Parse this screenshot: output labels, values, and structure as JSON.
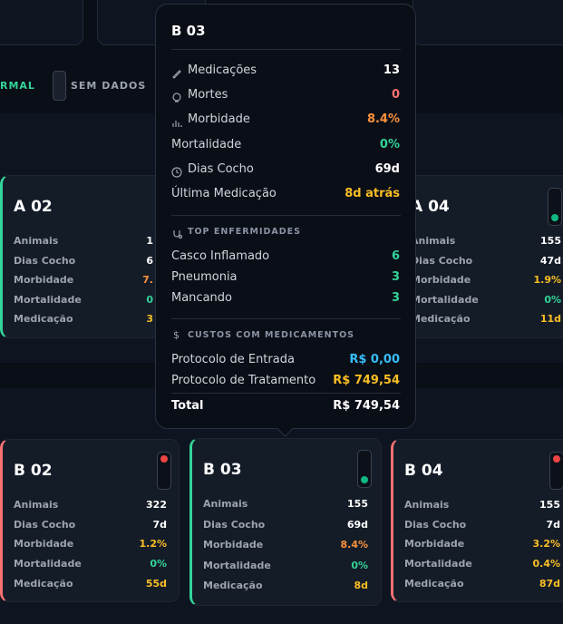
{
  "legend": [
    "RMAL",
    "SEM DADOS"
  ],
  "cards": [
    {
      "title": "A 02",
      "rows": [
        [
          "Animais",
          "1"
        ],
        [
          "Dias Cocho",
          "6"
        ],
        [
          "Morbidade",
          "7."
        ],
        [
          "Mortalidade",
          "0"
        ],
        [
          "Medicação",
          "3"
        ]
      ]
    },
    {
      "title": "A 04",
      "rows": [
        [
          "Animais",
          "155"
        ],
        [
          "Dias Cocho",
          "47d"
        ],
        [
          "Morbidade",
          "1.9%"
        ],
        [
          "Mortalidade",
          "0%"
        ],
        [
          "Medicação",
          "11d"
        ]
      ]
    },
    {
      "title": "B 02",
      "rows": [
        [
          "Animais",
          "322"
        ],
        [
          "Dias Cocho",
          "7d"
        ],
        [
          "Morbidade",
          "1.2%"
        ],
        [
          "Mortalidade",
          "0%"
        ],
        [
          "Medicação",
          "55d"
        ]
      ]
    },
    {
      "title": "B 03",
      "rows": [
        [
          "Animais",
          "155"
        ],
        [
          "Dias Cocho",
          "69d"
        ],
        [
          "Morbidade",
          "8.4%"
        ],
        [
          "Mortalidade",
          "0%"
        ],
        [
          "Medicação",
          "8d"
        ]
      ]
    },
    {
      "title": "B 04",
      "rows": [
        [
          "Animais",
          "155"
        ],
        [
          "Dias Cocho",
          "7d"
        ],
        [
          "Morbidade",
          "3.2%"
        ],
        [
          "Mortalidade",
          "0.4%"
        ],
        [
          "Medicação",
          "87d"
        ]
      ]
    }
  ],
  "tooltip": {
    "title": "B 03",
    "stats": [
      [
        "Medicações",
        "13"
      ],
      [
        "Mortes",
        "0"
      ],
      [
        "Morbidade",
        "8.4%"
      ],
      [
        "Mortalidade",
        "0%"
      ],
      [
        "Dias Cocho",
        "69d"
      ],
      [
        "Última Medicação",
        "8d atrás"
      ]
    ],
    "diseases_title": "TOP ENFERMIDADES",
    "diseases": [
      [
        "Casco Inflamado",
        "6"
      ],
      [
        "Pneumonia",
        "3"
      ],
      [
        "Mancando",
        "3"
      ]
    ],
    "costs_title": "CUSTOS COM MEDICAMENTOS",
    "costs": [
      [
        "Protocolo de Entrada",
        "R$ 0,00"
      ],
      [
        "Protocolo de Tratamento",
        "R$ 749,54"
      ]
    ],
    "total": [
      "Total",
      "R$ 749,54"
    ]
  }
}
